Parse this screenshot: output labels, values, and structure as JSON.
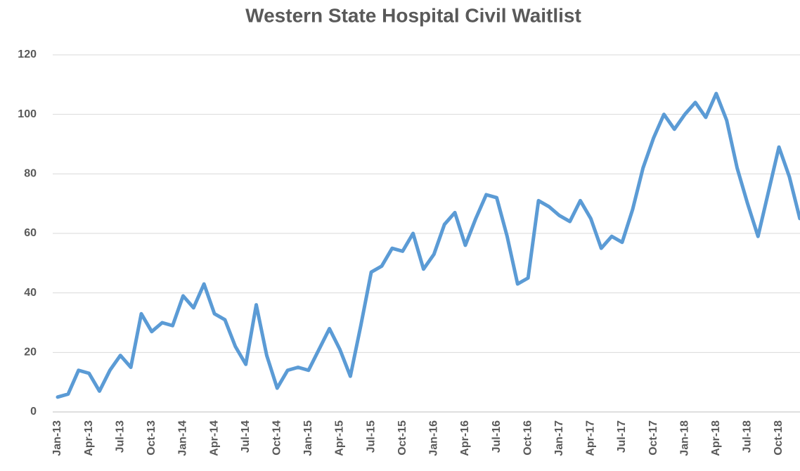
{
  "chart_data": {
    "type": "line",
    "title": "Western State Hospital Civil Waitlist",
    "categories": [
      "Jan-13",
      null,
      null,
      "Apr-13",
      null,
      null,
      "Jul-13",
      null,
      null,
      "Oct-13",
      null,
      null,
      "Jan-14",
      null,
      null,
      "Apr-14",
      null,
      null,
      "Jul-14",
      null,
      null,
      "Oct-14",
      null,
      null,
      "Jan-15",
      null,
      null,
      "Apr-15",
      null,
      null,
      "Jul-15",
      null,
      null,
      "Oct-15",
      null,
      null,
      "Jan-16",
      null,
      null,
      "Apr-16",
      null,
      null,
      "Jul-16",
      null,
      null,
      "Oct-16",
      null,
      null,
      "Jan-17",
      null,
      null,
      "Apr-17",
      null,
      null,
      "Jul-17",
      null,
      null,
      "Oct-17",
      null,
      null,
      "Jan-18",
      null,
      null,
      "Apr-18",
      null,
      null,
      "Jul-18",
      null,
      null,
      "Oct-18",
      null,
      null
    ],
    "series": [
      {
        "name": "Civil Waitlist",
        "color": "#5b9bd5",
        "values": [
          5,
          6,
          14,
          13,
          7,
          14,
          19,
          15,
          33,
          27,
          30,
          29,
          39,
          35,
          43,
          33,
          31,
          22,
          16,
          36,
          19,
          8,
          14,
          15,
          14,
          21,
          28,
          21,
          12,
          29,
          47,
          49,
          55,
          54,
          60,
          48,
          53,
          63,
          67,
          56,
          65,
          73,
          72,
          59,
          43,
          45,
          71,
          69,
          66,
          64,
          71,
          65,
          55,
          59,
          57,
          68,
          82,
          92,
          100,
          95,
          100,
          104,
          99,
          107,
          98,
          82,
          70,
          59,
          74,
          89,
          79,
          65
        ]
      }
    ],
    "ylim": [
      0,
      120
    ],
    "yticks": [
      0,
      20,
      40,
      60,
      80,
      100,
      120
    ],
    "grid": true
  }
}
